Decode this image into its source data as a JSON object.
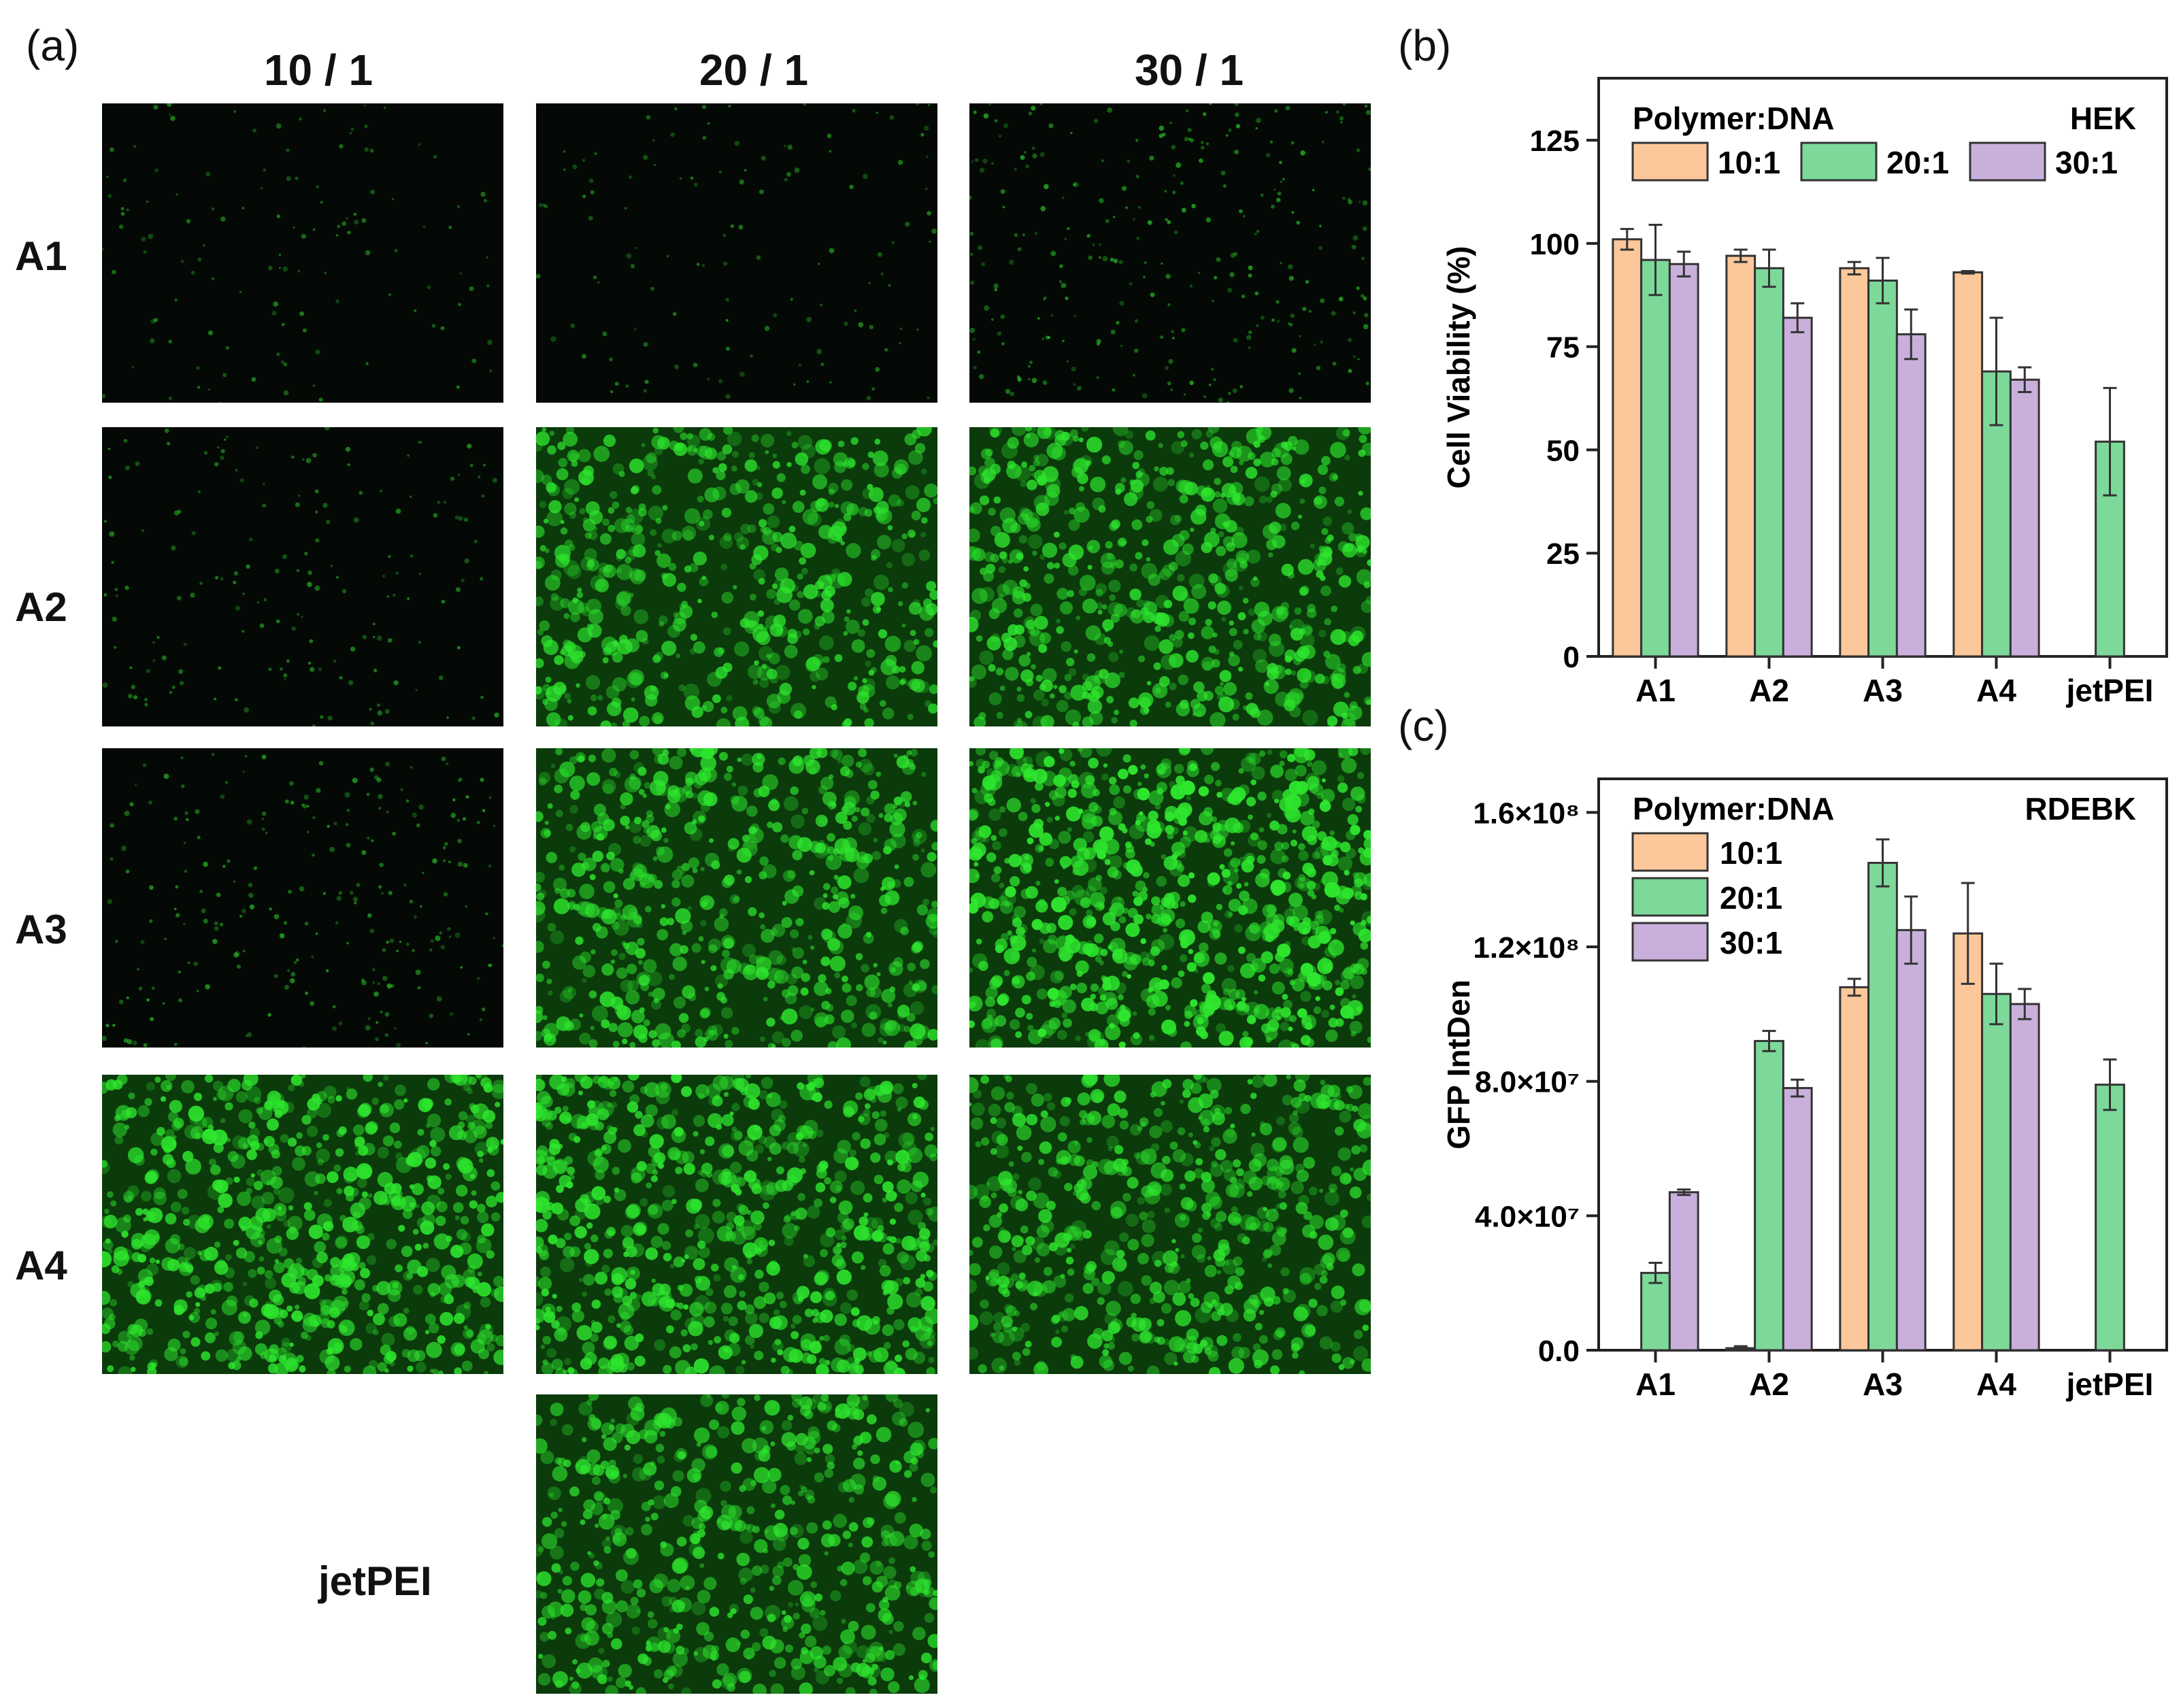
{
  "panel_a": {
    "label": "(a)",
    "columns": [
      "10 / 1",
      "20 / 1",
      "30 / 1"
    ],
    "rows": [
      "A1",
      "A2",
      "A3",
      "A4"
    ],
    "extra_row_label": "jetPEI",
    "fluorescence_color": "#2ee62e"
  },
  "panel_b_label": "(b)",
  "panel_c_label": "(c)",
  "chart_data": [
    {
      "type": "bar",
      "panel": "b",
      "ylabel": "Cell Viability (%)",
      "xlabel": "",
      "ylim": [
        0,
        140
      ],
      "yticks": [
        "0",
        "25",
        "50",
        "75",
        "100",
        "125"
      ],
      "categories": [
        "A1",
        "A2",
        "A3",
        "A4",
        "jetPEI"
      ],
      "legend_title": "Polymer:DNA",
      "annotation": "HEK",
      "legend_position": "top",
      "series": [
        {
          "name": "10:1",
          "color": "#fcc79a",
          "values": [
            101,
            97,
            94,
            93,
            null
          ],
          "errors": [
            2.5,
            1.5,
            1.5,
            0.3,
            null
          ]
        },
        {
          "name": "20:1",
          "color": "#7dd99a",
          "values": [
            96,
            94,
            91,
            69,
            52
          ],
          "errors": [
            8.5,
            4.5,
            5.5,
            13,
            13
          ]
        },
        {
          "name": "30:1",
          "color": "#c9b0dc",
          "values": [
            95,
            82,
            78,
            67,
            null
          ],
          "errors": [
            3,
            3.5,
            6,
            3,
            null
          ]
        }
      ]
    },
    {
      "type": "bar",
      "panel": "c",
      "ylabel": "GFP IntDen",
      "xlabel": "",
      "ylim": [
        0,
        170000000
      ],
      "yticks": [
        "0.0",
        "4.0×10⁷",
        "8.0×10⁷",
        "1.2×10⁸",
        "1.6×10⁸"
      ],
      "categories": [
        "A1",
        "A2",
        "A3",
        "A4",
        "jetPEI"
      ],
      "legend_title": "Polymer:DNA",
      "annotation": "RDEBK",
      "legend_position": "top-left",
      "series": [
        {
          "name": "10:1",
          "color": "#fcc79a",
          "values": [
            0,
            600000,
            108000000,
            124000000,
            null
          ],
          "errors": [
            0,
            600000,
            2500000,
            15000000,
            null
          ]
        },
        {
          "name": "20:1",
          "color": "#7dd99a",
          "values": [
            23000000,
            92000000,
            145000000,
            106000000,
            79000000
          ],
          "errors": [
            3000000,
            3000000,
            7000000,
            9000000,
            7500000
          ]
        },
        {
          "name": "30:1",
          "color": "#c9b0dc",
          "values": [
            47000000,
            78000000,
            125000000,
            103000000,
            null
          ],
          "errors": [
            800000,
            2500000,
            10000000,
            4500000,
            null
          ]
        }
      ]
    }
  ]
}
